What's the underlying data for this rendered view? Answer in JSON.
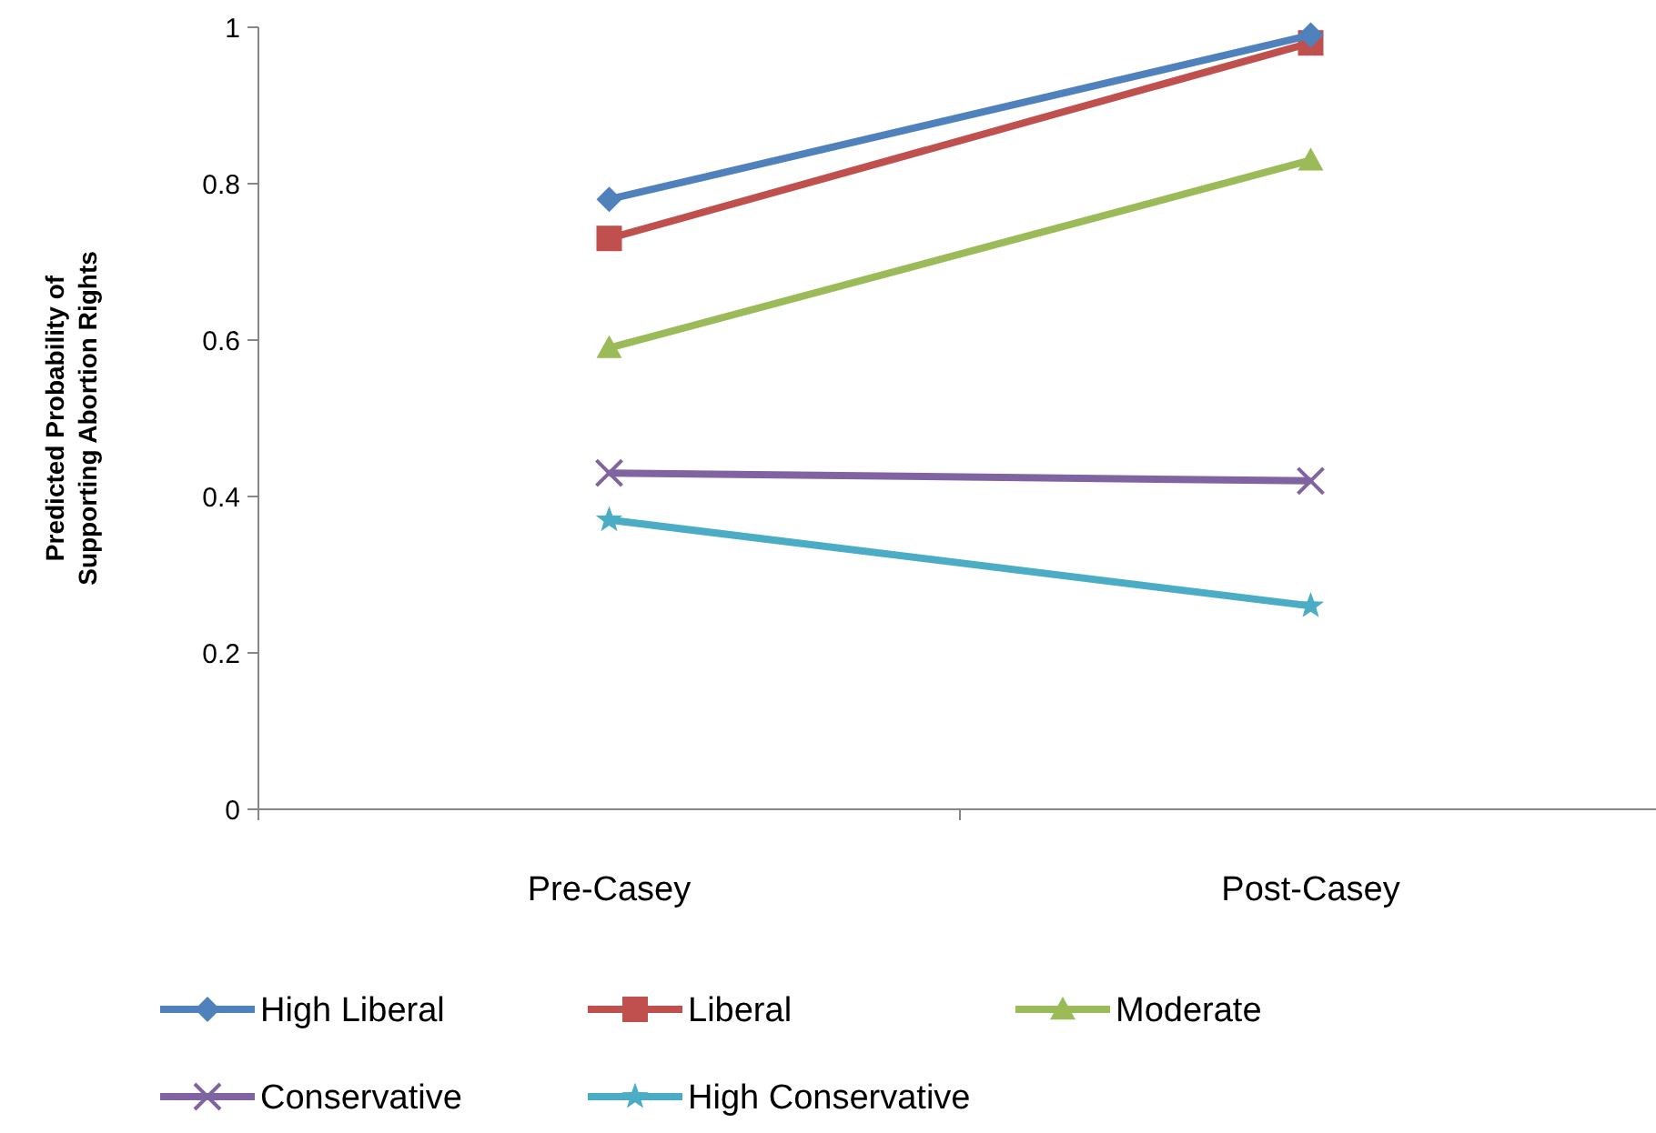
{
  "chart_data": {
    "type": "line",
    "ylabel": "Predicted Probability of Supporting Abortion Rights",
    "categories": [
      "Pre-Casey",
      "Post-Casey"
    ],
    "series": [
      {
        "name": "High Liberal",
        "color": "#4f81bd",
        "values": [
          0.78,
          0.99
        ],
        "marker": "diamond"
      },
      {
        "name": "Liberal",
        "color": "#c0504d",
        "values": [
          0.73,
          0.98
        ],
        "marker": "square"
      },
      {
        "name": "Moderate",
        "color": "#9bbb59",
        "values": [
          0.59,
          0.83
        ],
        "marker": "triangle"
      },
      {
        "name": "Conservative",
        "color": "#8064a2",
        "values": [
          0.43,
          0.42
        ],
        "marker": "cross"
      },
      {
        "name": "High Conservative",
        "color": "#4bacc6",
        "values": [
          0.37,
          0.26
        ],
        "marker": "star"
      }
    ],
    "ylim": [
      0,
      1
    ],
    "yticks": [
      0,
      0.2,
      0.4,
      0.6,
      0.8,
      1
    ],
    "grid": false,
    "legend": "bottom"
  }
}
